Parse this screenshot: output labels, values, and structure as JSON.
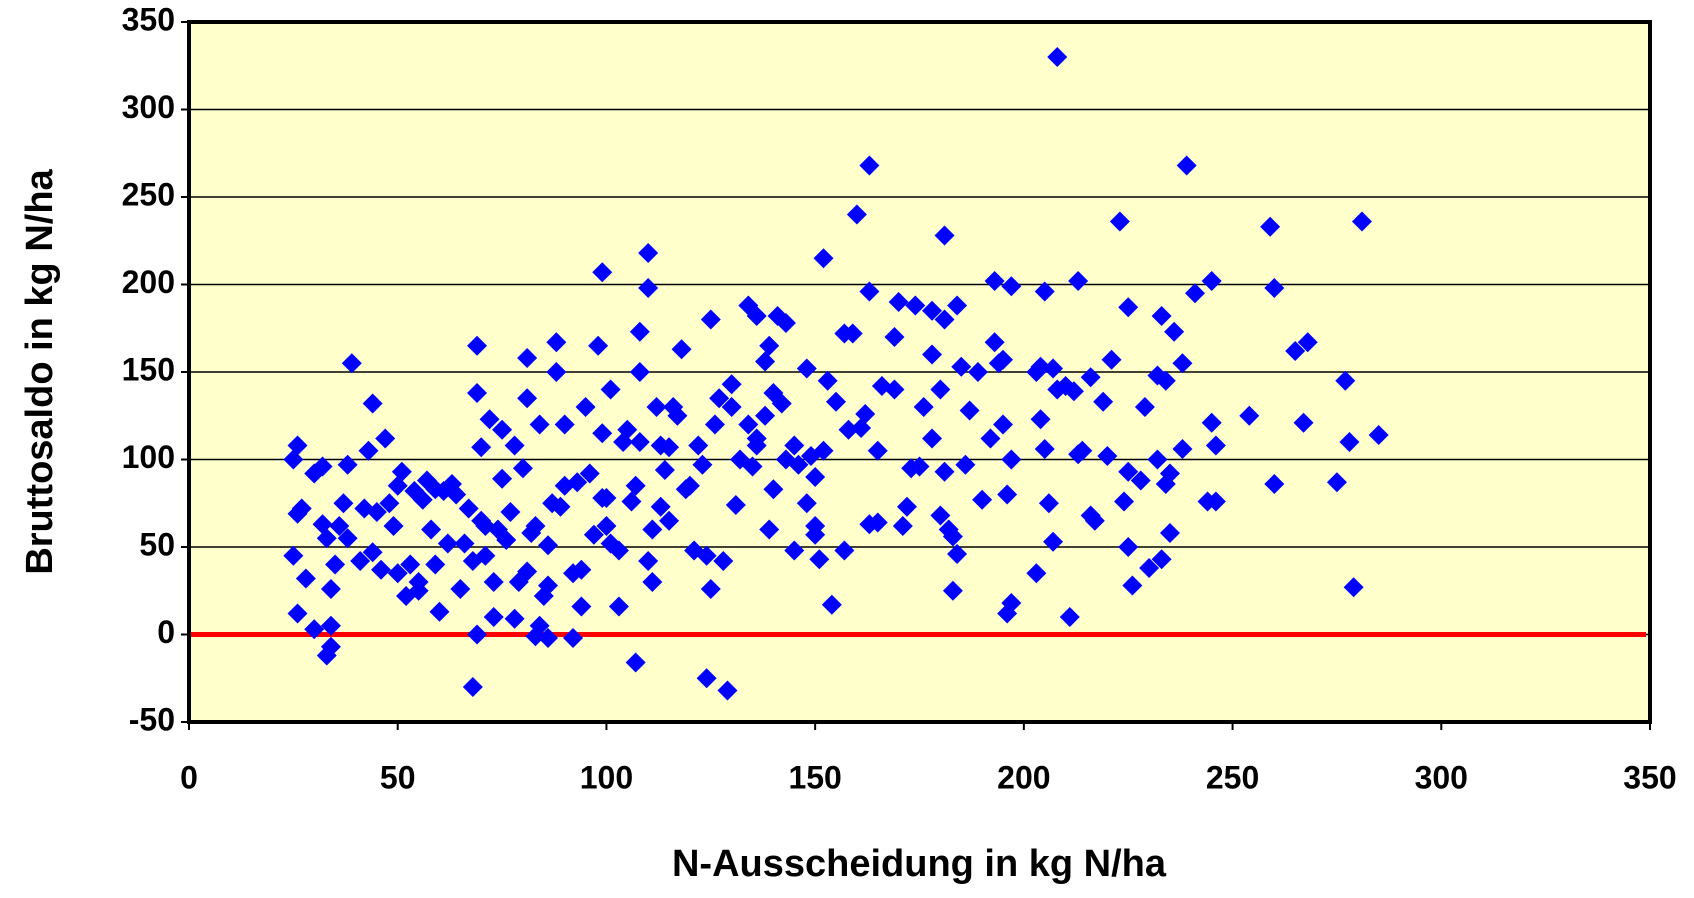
{
  "chart_data": {
    "type": "scatter",
    "x_label": "N-Ausscheidung in kg N/ha",
    "y_label": "Bruttosaldo  in kg N/ha",
    "color": "#0000ff",
    "plot_background": "#ffffcc",
    "reference_line": {
      "value": 0,
      "color": "#ff0000"
    },
    "xlim": [
      0,
      350
    ],
    "xticks": [
      0,
      50,
      100,
      150,
      200,
      250,
      300,
      350
    ],
    "ylim": [
      -50,
      350
    ],
    "yticks": [
      -50,
      0,
      50,
      100,
      150,
      200,
      250,
      300,
      350
    ],
    "grid": true,
    "x": [
      208,
      163,
      239,
      160,
      223,
      281,
      259,
      181,
      110,
      152,
      99,
      110,
      163,
      205,
      213,
      193,
      197,
      241,
      245,
      260,
      170,
      174,
      178,
      184,
      181,
      134,
      136,
      141,
      143,
      125,
      225,
      233,
      236,
      265,
      268,
      277,
      278,
      275,
      279,
      285,
      254,
      260,
      267,
      245,
      246,
      244,
      246,
      238,
      238,
      233,
      235,
      234,
      235,
      232,
      232,
      234,
      229,
      225,
      224,
      225,
      226,
      230,
      228,
      221,
      219,
      220,
      216,
      217,
      216,
      214,
      213,
      211,
      210,
      212,
      208,
      207,
      203,
      204,
      203,
      206,
      207,
      204,
      205,
      197,
      196,
      196,
      197,
      194,
      195,
      193,
      195,
      192,
      190,
      189,
      187,
      186,
      185,
      184,
      183,
      183,
      182,
      180,
      181,
      180,
      178,
      178,
      176,
      175,
      173,
      172,
      171,
      169,
      169,
      166,
      165,
      165,
      163,
      162,
      161,
      159,
      158,
      157,
      157,
      155,
      154,
      153,
      152,
      151,
      150,
      150,
      150,
      148,
      149,
      148,
      146,
      145,
      145,
      143,
      142,
      140,
      140,
      139,
      138,
      138,
      139,
      136,
      136,
      135,
      134,
      132,
      131,
      130,
      130,
      129,
      128,
      127,
      126,
      125,
      124,
      124,
      123,
      122,
      121,
      120,
      119,
      118,
      117,
      116,
      115,
      115,
      114,
      113,
      113,
      112,
      111,
      111,
      110,
      108,
      108,
      108,
      107,
      106,
      105,
      104,
      103,
      103,
      101,
      101,
      100,
      100,
      99,
      98,
      97,
      96,
      95,
      94,
      94,
      93,
      92,
      92,
      90,
      90,
      89,
      88,
      88,
      87,
      86,
      86,
      85,
      84,
      84,
      83,
      82,
      81,
      81,
      81,
      80,
      79,
      78,
      78,
      77,
      76,
      75,
      75,
      74,
      73,
      73,
      72,
      71,
      71,
      70,
      70,
      69,
      69,
      69,
      68,
      68,
      67,
      66,
      65,
      64,
      63,
      62,
      61,
      60,
      59,
      59,
      58,
      57,
      56,
      55,
      55,
      54,
      53,
      52,
      51,
      50,
      50,
      49,
      48,
      47,
      46,
      45,
      44,
      44,
      43,
      42,
      41,
      39,
      38,
      38,
      37,
      36,
      35,
      34,
      34,
      34,
      33,
      33,
      32,
      32,
      30,
      30,
      28,
      27,
      26,
      26,
      26,
      25,
      25,
      107,
      99,
      83,
      86
    ],
    "values": [
      330,
      268,
      268,
      240,
      236,
      236,
      233,
      228,
      218,
      215,
      207,
      198,
      196,
      196,
      202,
      202,
      199,
      195,
      202,
      198,
      190,
      188,
      185,
      188,
      180,
      188,
      182,
      182,
      178,
      180,
      187,
      182,
      173,
      162,
      167,
      145,
      110,
      87,
      27,
      114,
      125,
      86,
      121,
      121,
      108,
      76,
      76,
      155,
      106,
      43,
      58,
      86,
      92,
      100,
      148,
      145,
      130,
      93,
      76,
      50,
      28,
      38,
      88,
      157,
      133,
      102,
      68,
      65,
      147,
      105,
      103,
      10,
      142,
      139,
      140,
      152,
      150,
      153,
      35,
      75,
      53,
      123,
      106,
      18,
      12,
      80,
      100,
      155,
      157,
      167,
      120,
      112,
      77,
      150,
      128,
      97,
      153,
      46,
      56,
      25,
      60,
      68,
      93,
      140,
      112,
      160,
      130,
      96,
      95,
      73,
      62,
      140,
      170,
      142,
      105,
      64,
      63,
      126,
      118,
      172,
      117,
      172,
      48,
      133,
      17,
      145,
      105,
      43,
      62,
      57,
      90,
      152,
      102,
      75,
      97,
      48,
      108,
      100,
      132,
      138,
      83,
      60,
      125,
      156,
      165,
      112,
      108,
      96,
      120,
      100,
      74,
      130,
      143,
      -32,
      42,
      135,
      120,
      26,
      -25,
      45,
      97,
      108,
      48,
      85,
      83,
      163,
      125,
      130,
      107,
      65,
      94,
      108,
      73,
      130,
      60,
      30,
      42,
      150,
      110,
      173,
      85,
      76,
      117,
      110,
      48,
      16,
      140,
      52,
      62,
      78,
      115,
      165,
      57,
      92,
      130,
      37,
      16,
      87,
      35,
      -2,
      120,
      85,
      73,
      150,
      167,
      75,
      28,
      51,
      22,
      5,
      120,
      62,
      58,
      158,
      135,
      36,
      95,
      30,
      108,
      9,
      70,
      54,
      89,
      117,
      60,
      30,
      10,
      123,
      62,
      45,
      107,
      65,
      0,
      138,
      165,
      42,
      -30,
      72,
      52,
      26,
      80,
      86,
      52,
      82,
      13,
      83,
      40,
      60,
      88,
      77,
      30,
      25,
      82,
      40,
      22,
      93,
      85,
      35,
      62,
      75,
      112,
      37,
      70,
      132,
      47,
      105,
      72,
      42,
      155,
      97,
      55,
      75,
      62,
      40,
      26,
      5,
      -7,
      -12,
      55,
      63,
      96,
      3,
      92,
      32,
      72,
      69,
      108,
      12,
      45,
      100,
      -16,
      78,
      -1,
      -2
    ]
  }
}
